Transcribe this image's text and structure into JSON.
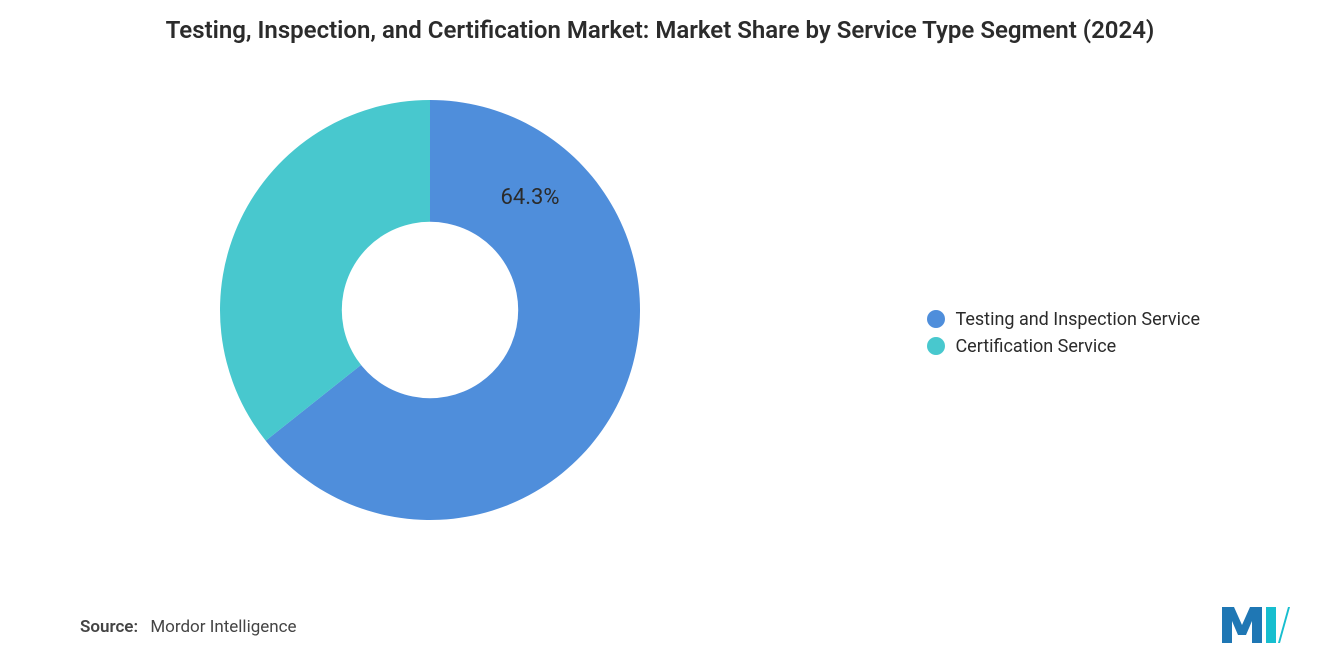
{
  "title": "Testing, Inspection, and Certification Market: Market Share by Service Type Segment (2024)",
  "chart": {
    "type": "donut",
    "inner_radius_ratio": 0.42,
    "start_angle_deg": -90,
    "background_color": "#ffffff",
    "slices": [
      {
        "label": "Testing and Inspection Service",
        "value": 64.3,
        "color": "#4f8edb",
        "show_pct": true
      },
      {
        "label": "Certification Service",
        "value": 35.7,
        "color": "#48c8ce",
        "show_pct": false
      }
    ],
    "pct_label_fontsize": 22,
    "pct_label_color": "#2b2b2b",
    "shown_pct_text": "64.3%"
  },
  "legend": {
    "items": [
      {
        "label": "Testing and Inspection Service",
        "color": "#4f8edb"
      },
      {
        "label": "Certification Service",
        "color": "#48c8ce"
      }
    ],
    "fontsize": 18,
    "text_color": "#2b2b2b"
  },
  "source": {
    "label": "Source:",
    "text": "Mordor Intelligence"
  },
  "logo": {
    "bar_color_1": "#1f77b4",
    "bar_color_2": "#17becf"
  }
}
